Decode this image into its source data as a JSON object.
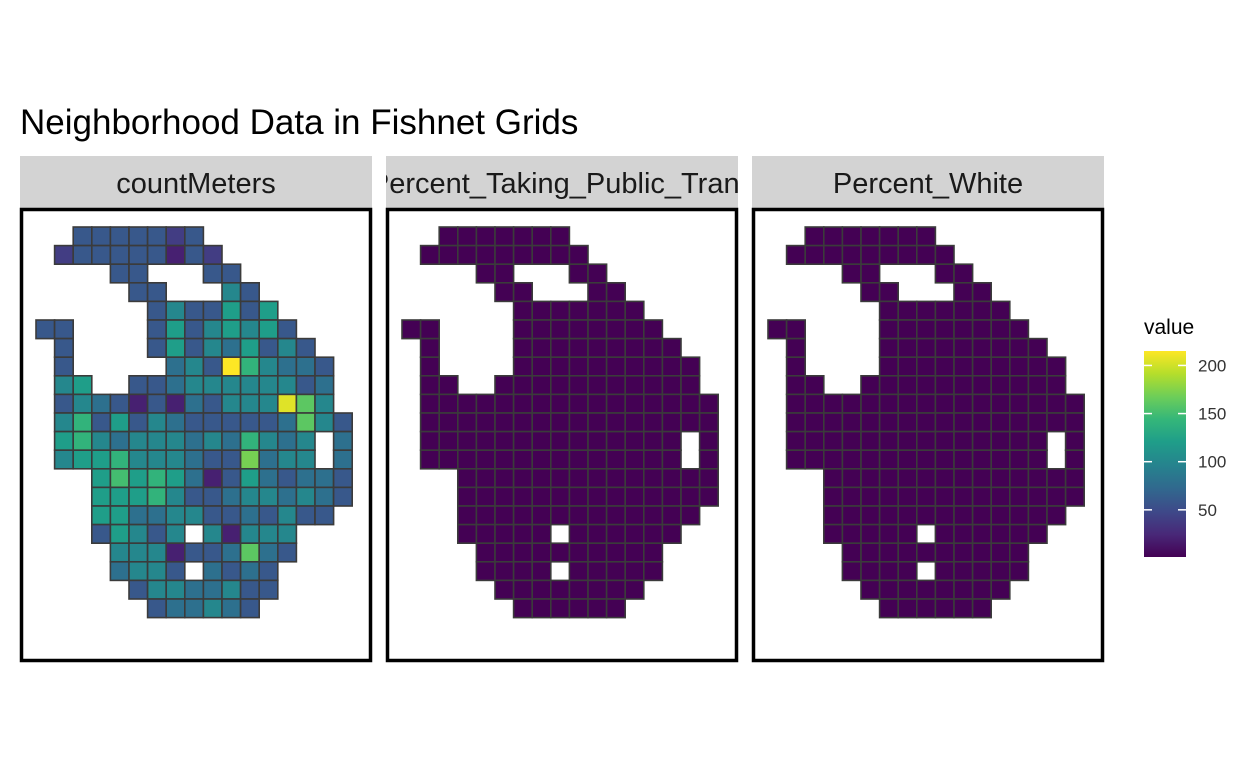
{
  "chart_data": {
    "type": "heatmap",
    "title": "Neighborhood Data in Fishnet Grids",
    "legend": {
      "title": "value",
      "ticks": [
        50,
        100,
        150,
        200
      ],
      "range": [
        1,
        215
      ],
      "placement": "right"
    },
    "grid": false,
    "cell_outline": "#3b3b3b",
    "panel_border": "#000000",
    "strip_color": "#d3d3d3",
    "colormap": [
      "#440154",
      "#482878",
      "#3e4989",
      "#31688e",
      "#26828e",
      "#1f9e89",
      "#35b779",
      "#6ece58",
      "#b5de2b",
      "#fde725"
    ],
    "rows": 22,
    "cols": 17,
    "mask": [
      "..XXXXXXX........",
      ".XXXXXXXXX.......",
      "....XX...XX......",
      ".....XX...XX.....",
      "......XXXXXXX....",
      "XX....XXXXXXXX...",
      ".X....XXXXXXXXX..",
      ".X....XXXXXXXXXX.",
      ".XX..XXXXXXXXXXX.",
      ".XXXXXXXXXXXXXXXX",
      ".XXXXXXXXXXXXXXXX",
      ".XXXXXXXXXXXXXX.X",
      ".XXXXXXXXXXXXXX.X",
      "...XXXXXXXXXXXXXX",
      "...XXXXXXXXXXXXXX",
      "...XXXXXXXXXXXXX.",
      "...XXXXX.XXXXXX..",
      "....XXXXXXXXXX...",
      "....XXXX.XXXXX...",
      ".....XXXXXXXX....",
      "......XXXXXX.....",
      "................."
    ],
    "panels": [
      {
        "strip_label": "countMeters",
        "values": [
          [
            null,
            null,
            60,
            60,
            60,
            60,
            60,
            40,
            60,
            null,
            null,
            null,
            null,
            null,
            null,
            null,
            null
          ],
          [
            null,
            40,
            60,
            60,
            60,
            60,
            60,
            20,
            60,
            40,
            null,
            null,
            null,
            null,
            null,
            null,
            null
          ],
          [
            null,
            null,
            null,
            null,
            60,
            60,
            null,
            null,
            null,
            60,
            60,
            null,
            null,
            null,
            null,
            null,
            null
          ],
          [
            null,
            null,
            null,
            null,
            null,
            60,
            60,
            null,
            null,
            null,
            100,
            60,
            null,
            null,
            null,
            null,
            null
          ],
          [
            null,
            null,
            null,
            null,
            null,
            null,
            60,
            100,
            60,
            60,
            120,
            60,
            120,
            null,
            null,
            null,
            null
          ],
          [
            60,
            60,
            null,
            null,
            null,
            null,
            60,
            120,
            60,
            100,
            120,
            100,
            120,
            60,
            null,
            null,
            null
          ],
          [
            null,
            60,
            null,
            null,
            null,
            null,
            60,
            120,
            60,
            100,
            80,
            120,
            60,
            100,
            60,
            null,
            null
          ],
          [
            null,
            60,
            null,
            null,
            null,
            null,
            null,
            80,
            100,
            60,
            215,
            140,
            100,
            80,
            80,
            60,
            null
          ],
          [
            null,
            100,
            120,
            null,
            null,
            60,
            60,
            80,
            100,
            100,
            100,
            100,
            100,
            100,
            60,
            80,
            null
          ],
          [
            null,
            60,
            100,
            80,
            60,
            20,
            60,
            20,
            80,
            60,
            100,
            100,
            100,
            205,
            160,
            100,
            null
          ],
          [
            null,
            100,
            140,
            60,
            120,
            60,
            100,
            80,
            60,
            60,
            60,
            60,
            60,
            80,
            160,
            100,
            60
          ],
          [
            null,
            120,
            140,
            100,
            80,
            100,
            100,
            100,
            80,
            100,
            80,
            140,
            100,
            80,
            100,
            null,
            80
          ],
          [
            null,
            100,
            120,
            120,
            140,
            100,
            100,
            100,
            80,
            60,
            60,
            170,
            80,
            100,
            100,
            null,
            80
          ],
          [
            null,
            null,
            null,
            120,
            150,
            120,
            140,
            120,
            80,
            20,
            60,
            120,
            80,
            60,
            80,
            80,
            60
          ],
          [
            null,
            null,
            null,
            120,
            120,
            120,
            140,
            100,
            60,
            60,
            80,
            100,
            100,
            80,
            100,
            80,
            60
          ],
          [
            null,
            null,
            null,
            120,
            120,
            80,
            80,
            100,
            100,
            60,
            60,
            80,
            60,
            100,
            60,
            60,
            null
          ],
          [
            null,
            null,
            null,
            60,
            120,
            100,
            60,
            100,
            null,
            100,
            20,
            100,
            100,
            100,
            null,
            null,
            null
          ],
          [
            null,
            null,
            null,
            null,
            100,
            100,
            100,
            20,
            60,
            60,
            80,
            160,
            80,
            60,
            null,
            null,
            null
          ],
          [
            null,
            null,
            null,
            null,
            80,
            100,
            100,
            60,
            null,
            80,
            60,
            80,
            60,
            null,
            null,
            null,
            null
          ],
          [
            null,
            null,
            null,
            null,
            null,
            60,
            100,
            100,
            80,
            80,
            100,
            60,
            60,
            null,
            null,
            null,
            null
          ],
          [
            null,
            null,
            null,
            null,
            null,
            null,
            60,
            80,
            80,
            100,
            80,
            60,
            null,
            null,
            null,
            null,
            null
          ],
          [
            null,
            null,
            null,
            null,
            null,
            null,
            null,
            null,
            null,
            null,
            null,
            null,
            null,
            null,
            null,
            null,
            null
          ]
        ]
      },
      {
        "strip_label": "Percent_Taking_Public_Trans",
        "fill_value": 1
      },
      {
        "strip_label": "Percent_White",
        "fill_value": 1
      }
    ]
  }
}
